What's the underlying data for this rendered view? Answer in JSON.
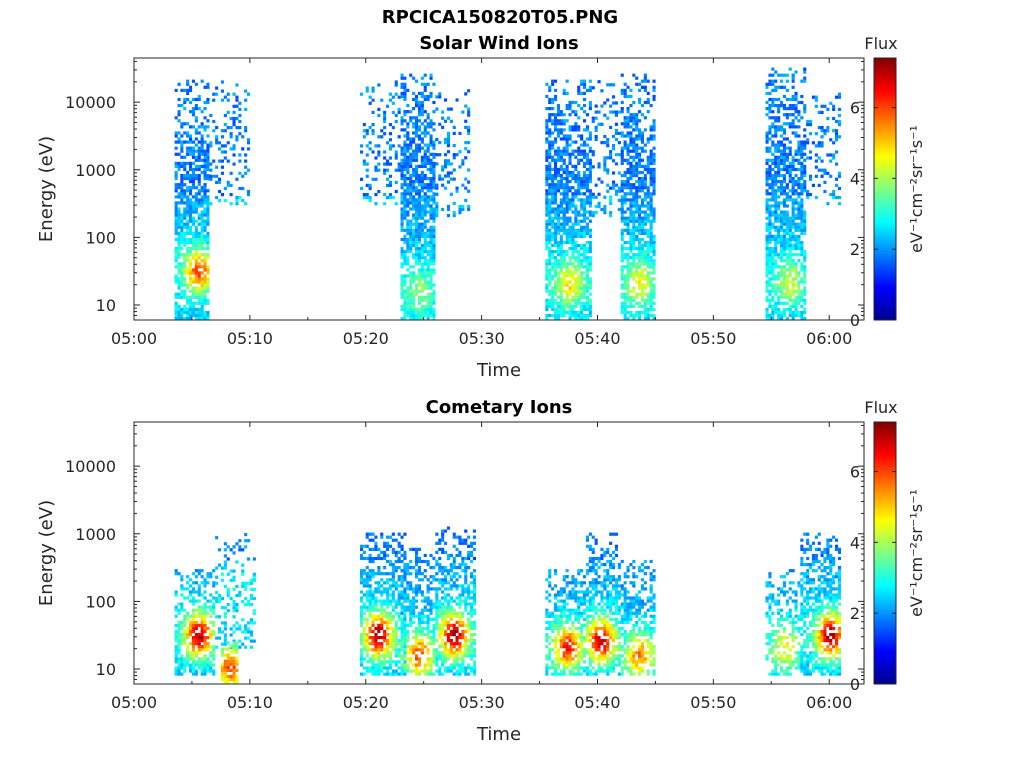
{
  "figure": {
    "title": "RPCICA150820T05.PNG"
  },
  "colormap": {
    "name": "jet",
    "stops": [
      "#00008f",
      "#0000ff",
      "#0080ff",
      "#00ffff",
      "#80ff80",
      "#ffff00",
      "#ff8000",
      "#ff0000",
      "#800000"
    ]
  },
  "chart_data": [
    {
      "type": "heatmap",
      "title": "Solar Wind Ions",
      "xlabel": "Time",
      "ylabel": "Energy (eV)",
      "x_ticks": [
        "05:00",
        "05:10",
        "05:20",
        "05:30",
        "05:40",
        "05:50",
        "06:00"
      ],
      "x_range": [
        "05:00",
        "06:03"
      ],
      "y_scale": "log",
      "y_ticks": [
        "10",
        "100",
        "1000",
        "10000"
      ],
      "y_range": [
        6,
        45000
      ],
      "colorbar": {
        "label": "Flux",
        "units": "eV⁻¹cm⁻²sr⁻¹s⁻¹",
        "ticks": [
          "0",
          "2",
          "4",
          "6"
        ],
        "range": [
          0,
          7.4
        ]
      },
      "grid": false,
      "bursts": [
        {
          "start": "05:03.5",
          "end": "05:06.5",
          "e_min": 6,
          "e_max": 20000,
          "peak_energy": 30,
          "peak_time": "05:05.5",
          "peak_flux": 6.0,
          "density": 0.75
        },
        {
          "start": "05:06.5",
          "end": "05:10.0",
          "e_min": 300,
          "e_max": 20000,
          "peak_energy": 1500,
          "peak_time": "05:08.0",
          "peak_flux": 2.2,
          "density": 0.25
        },
        {
          "start": "05:19.5",
          "end": "05:23.0",
          "e_min": 300,
          "e_max": 20000,
          "peak_energy": 2000,
          "peak_time": "05:21.0",
          "peak_flux": 2.2,
          "density": 0.25
        },
        {
          "start": "05:23.0",
          "end": "05:26.0",
          "e_min": 6,
          "e_max": 25000,
          "peak_energy": 15,
          "peak_time": "05:24.5",
          "peak_flux": 3.8,
          "density": 0.8
        },
        {
          "start": "05:26.0",
          "end": "05:29.0",
          "e_min": 200,
          "e_max": 15000,
          "peak_energy": 2000,
          "peak_time": "05:27.5",
          "peak_flux": 2.2,
          "density": 0.25
        },
        {
          "start": "05:35.5",
          "end": "05:39.5",
          "e_min": 6,
          "e_max": 20000,
          "peak_energy": 20,
          "peak_time": "05:37.5",
          "peak_flux": 4.8,
          "density": 0.75
        },
        {
          "start": "05:39.5",
          "end": "05:42.0",
          "e_min": 200,
          "e_max": 20000,
          "peak_energy": 2000,
          "peak_time": "05:40.5",
          "peak_flux": 2.2,
          "density": 0.25
        },
        {
          "start": "05:42.0",
          "end": "05:45.0",
          "e_min": 6,
          "e_max": 25000,
          "peak_energy": 20,
          "peak_time": "05:43.5",
          "peak_flux": 4.6,
          "density": 0.75
        },
        {
          "start": "05:54.5",
          "end": "05:58.0",
          "e_min": 6,
          "e_max": 30000,
          "peak_energy": 20,
          "peak_time": "05:56.5",
          "peak_flux": 4.2,
          "density": 0.75
        },
        {
          "start": "05:58.0",
          "end": "06:01.0",
          "e_min": 300,
          "e_max": 15000,
          "peak_energy": 2000,
          "peak_time": "05:59.5",
          "peak_flux": 2.2,
          "density": 0.25
        }
      ]
    },
    {
      "type": "heatmap",
      "title": "Cometary Ions",
      "xlabel": "Time",
      "ylabel": "Energy (eV)",
      "x_ticks": [
        "05:00",
        "05:10",
        "05:20",
        "05:30",
        "05:40",
        "05:50",
        "06:00"
      ],
      "x_range": [
        "05:00",
        "06:03"
      ],
      "y_scale": "log",
      "y_ticks": [
        "10",
        "100",
        "1000",
        "10000"
      ],
      "y_range": [
        6,
        45000
      ],
      "colorbar": {
        "label": "Flux",
        "units": "eV⁻¹cm⁻²sr⁻¹s⁻¹",
        "ticks": [
          "0",
          "2",
          "4",
          "6"
        ],
        "range": [
          0,
          7.4
        ]
      },
      "grid": false,
      "bursts": [
        {
          "start": "05:03.5",
          "end": "05:07.0",
          "e_min": 8,
          "e_max": 300,
          "peak_energy": 30,
          "peak_time": "05:05.5",
          "peak_flux": 7.0,
          "density": 0.7
        },
        {
          "start": "05:07.0",
          "end": "05:10.5",
          "e_min": 20,
          "e_max": 1000,
          "peak_energy": 100,
          "peak_time": "05:08.5",
          "peak_flux": 2.6,
          "density": 0.35
        },
        {
          "start": "05:07.5",
          "end": "05:08.8",
          "e_min": 6,
          "e_max": 25,
          "peak_energy": 10,
          "peak_time": "05:08.2",
          "peak_flux": 6.0,
          "density": 0.85
        },
        {
          "start": "05:19.5",
          "end": "05:23.5",
          "e_min": 8,
          "e_max": 1000,
          "peak_energy": 30,
          "peak_time": "05:21.0",
          "peak_flux": 7.2,
          "density": 0.7
        },
        {
          "start": "05:23.0",
          "end": "05:26.0",
          "e_min": 8,
          "e_max": 600,
          "peak_energy": 15,
          "peak_time": "05:24.5",
          "peak_flux": 6.0,
          "density": 0.6
        },
        {
          "start": "05:26.0",
          "end": "05:29.5",
          "e_min": 8,
          "e_max": 1200,
          "peak_energy": 30,
          "peak_time": "05:27.5",
          "peak_flux": 7.2,
          "density": 0.7
        },
        {
          "start": "05:35.5",
          "end": "05:39.0",
          "e_min": 8,
          "e_max": 300,
          "peak_energy": 20,
          "peak_time": "05:37.3",
          "peak_flux": 6.4,
          "density": 0.7
        },
        {
          "start": "05:39.0",
          "end": "05:42.0",
          "e_min": 8,
          "e_max": 1000,
          "peak_energy": 25,
          "peak_time": "05:40.2",
          "peak_flux": 7.0,
          "density": 0.7
        },
        {
          "start": "05:42.0",
          "end": "05:45.0",
          "e_min": 8,
          "e_max": 400,
          "peak_energy": 15,
          "peak_time": "05:43.5",
          "peak_flux": 5.6,
          "density": 0.6
        },
        {
          "start": "05:54.5",
          "end": "05:57.5",
          "e_min": 8,
          "e_max": 300,
          "peak_energy": 20,
          "peak_time": "05:56.0",
          "peak_flux": 4.6,
          "density": 0.5
        },
        {
          "start": "05:57.5",
          "end": "06:01.0",
          "e_min": 8,
          "e_max": 1000,
          "peak_energy": 30,
          "peak_time": "06:00.0",
          "peak_flux": 7.2,
          "density": 0.7
        }
      ]
    }
  ]
}
